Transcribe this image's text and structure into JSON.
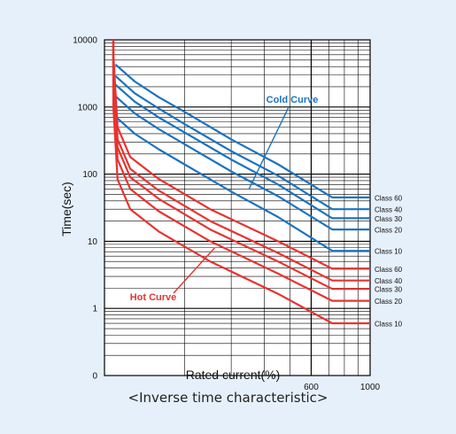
{
  "caption": "<Inverse time characteristic>",
  "chart_data": {
    "type": "line",
    "xlabel": "Rated current(%)",
    "ylabel": "Time(sec)",
    "x_scale": "log",
    "y_scale": "log",
    "xlim": [
      100,
      1000
    ],
    "ylim": [
      0.1,
      10000
    ],
    "x_tick_labels": [
      {
        "value": 600,
        "label": "600"
      },
      {
        "value": 1000,
        "label": "1000"
      }
    ],
    "y_tick_labels": [
      {
        "value": 10000,
        "label": "10000"
      },
      {
        "value": 1000,
        "label": "1000"
      },
      {
        "value": 100,
        "label": "100"
      },
      {
        "value": 10,
        "label": "10"
      },
      {
        "value": 1,
        "label": "1"
      },
      {
        "value": 0.1,
        "label": "0"
      }
    ],
    "grid": true,
    "colors": {
      "cold": "#1a73c0",
      "hot": "#e8332f"
    },
    "annotations": [
      {
        "text": "Cold Curve",
        "group": "cold"
      },
      {
        "text": "Hot Curve",
        "group": "hot"
      }
    ],
    "series": [
      {
        "name": "Class 60",
        "group": "cold",
        "x": [
          110,
          130,
          160,
          200,
          300,
          450,
          720,
          1000
        ],
        "y": [
          4300,
          2400,
          1400,
          850,
          330,
          140,
          45,
          45
        ]
      },
      {
        "name": "Class 40",
        "group": "cold",
        "x": [
          110,
          130,
          160,
          200,
          300,
          450,
          720,
          1000
        ],
        "y": [
          2900,
          1600,
          950,
          560,
          220,
          95,
          30,
          30
        ]
      },
      {
        "name": "Class 30",
        "group": "cold",
        "x": [
          110,
          130,
          160,
          200,
          300,
          450,
          720,
          1000
        ],
        "y": [
          2150,
          1200,
          700,
          420,
          165,
          70,
          22,
          22
        ]
      },
      {
        "name": "Class 20",
        "group": "cold",
        "x": [
          110,
          130,
          160,
          200,
          300,
          450,
          720,
          1000
        ],
        "y": [
          1450,
          800,
          470,
          280,
          110,
          47,
          15,
          15
        ]
      },
      {
        "name": "Class 10",
        "group": "cold",
        "x": [
          110,
          130,
          160,
          200,
          300,
          450,
          720,
          1000
        ],
        "y": [
          720,
          400,
          235,
          140,
          55,
          23,
          7.2,
          7.2
        ]
      },
      {
        "name": "Class 60",
        "group": "hot",
        "x": [
          108,
          112,
          125,
          160,
          250,
          450,
          720,
          1000
        ],
        "y": [
          6000,
          500,
          180,
          85,
          30,
          10,
          3.9,
          3.9
        ]
      },
      {
        "name": "Class 40",
        "group": "hot",
        "x": [
          108,
          112,
          125,
          160,
          250,
          450,
          720,
          1000
        ],
        "y": [
          4000,
          330,
          120,
          57,
          20,
          6.7,
          2.6,
          2.6
        ]
      },
      {
        "name": "Class 30",
        "group": "hot",
        "x": [
          108,
          112,
          125,
          160,
          250,
          450,
          720,
          1000
        ],
        "y": [
          3000,
          250,
          90,
          43,
          15,
          5,
          1.95,
          1.95
        ]
      },
      {
        "name": "Class 20",
        "group": "hot",
        "x": [
          108,
          112,
          125,
          160,
          250,
          450,
          720,
          1000
        ],
        "y": [
          2000,
          165,
          60,
          28,
          10,
          3.3,
          1.3,
          1.3
        ]
      },
      {
        "name": "Class 10",
        "group": "hot",
        "x": [
          108,
          112,
          125,
          160,
          250,
          450,
          720,
          1000
        ],
        "y": [
          1000,
          83,
          30,
          14,
          5,
          1.65,
          0.6,
          0.6
        ]
      }
    ]
  }
}
